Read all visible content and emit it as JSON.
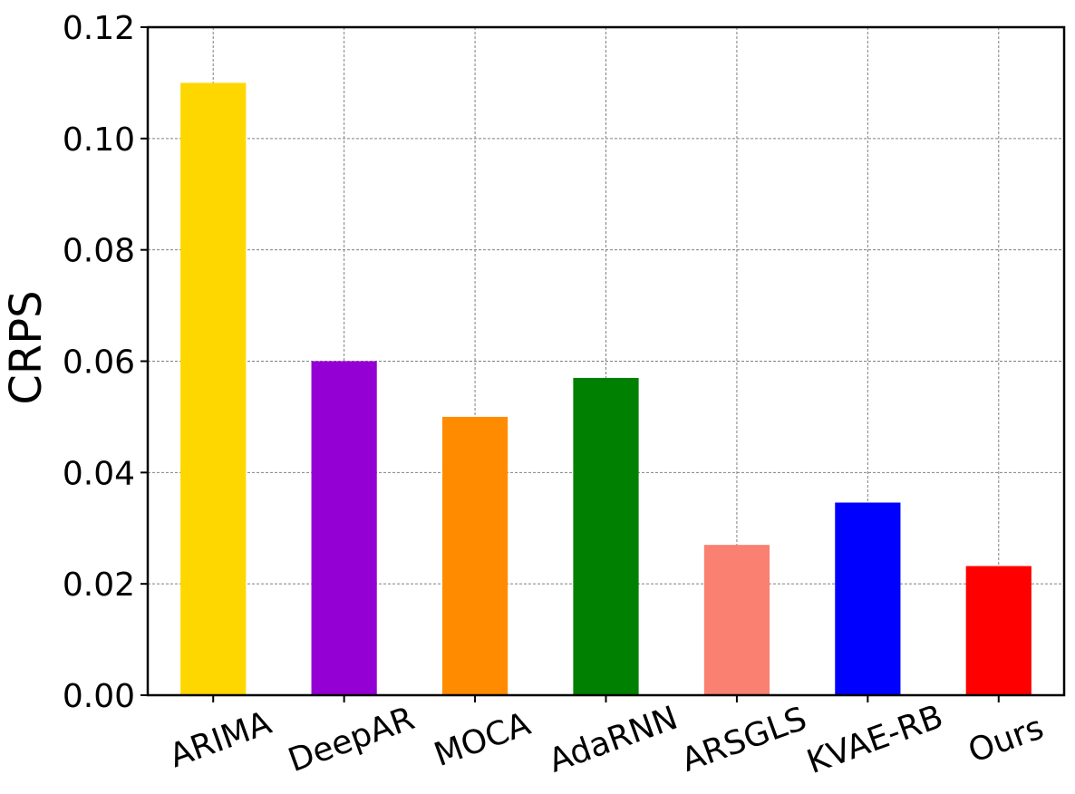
{
  "chart_data": {
    "type": "bar",
    "categories": [
      "ARIMA",
      "DeepAR",
      "MOCA",
      "AdaRNN",
      "ARSGLS",
      "KVAE-RB",
      "Ours"
    ],
    "values": [
      0.11,
      0.06,
      0.05,
      0.057,
      0.027,
      0.0346,
      0.0232
    ],
    "colors": [
      "#FFD700",
      "#9400D3",
      "#FF8C00",
      "#008000",
      "#FA8072",
      "#0000FF",
      "#FF0000"
    ],
    "ylabel": "CRPS",
    "ylim": [
      0,
      0.12
    ],
    "yticks": [
      "0.00",
      "0.02",
      "0.04",
      "0.06",
      "0.08",
      "0.10",
      "0.12"
    ],
    "grid": true,
    "xtick_rotation": -20
  }
}
